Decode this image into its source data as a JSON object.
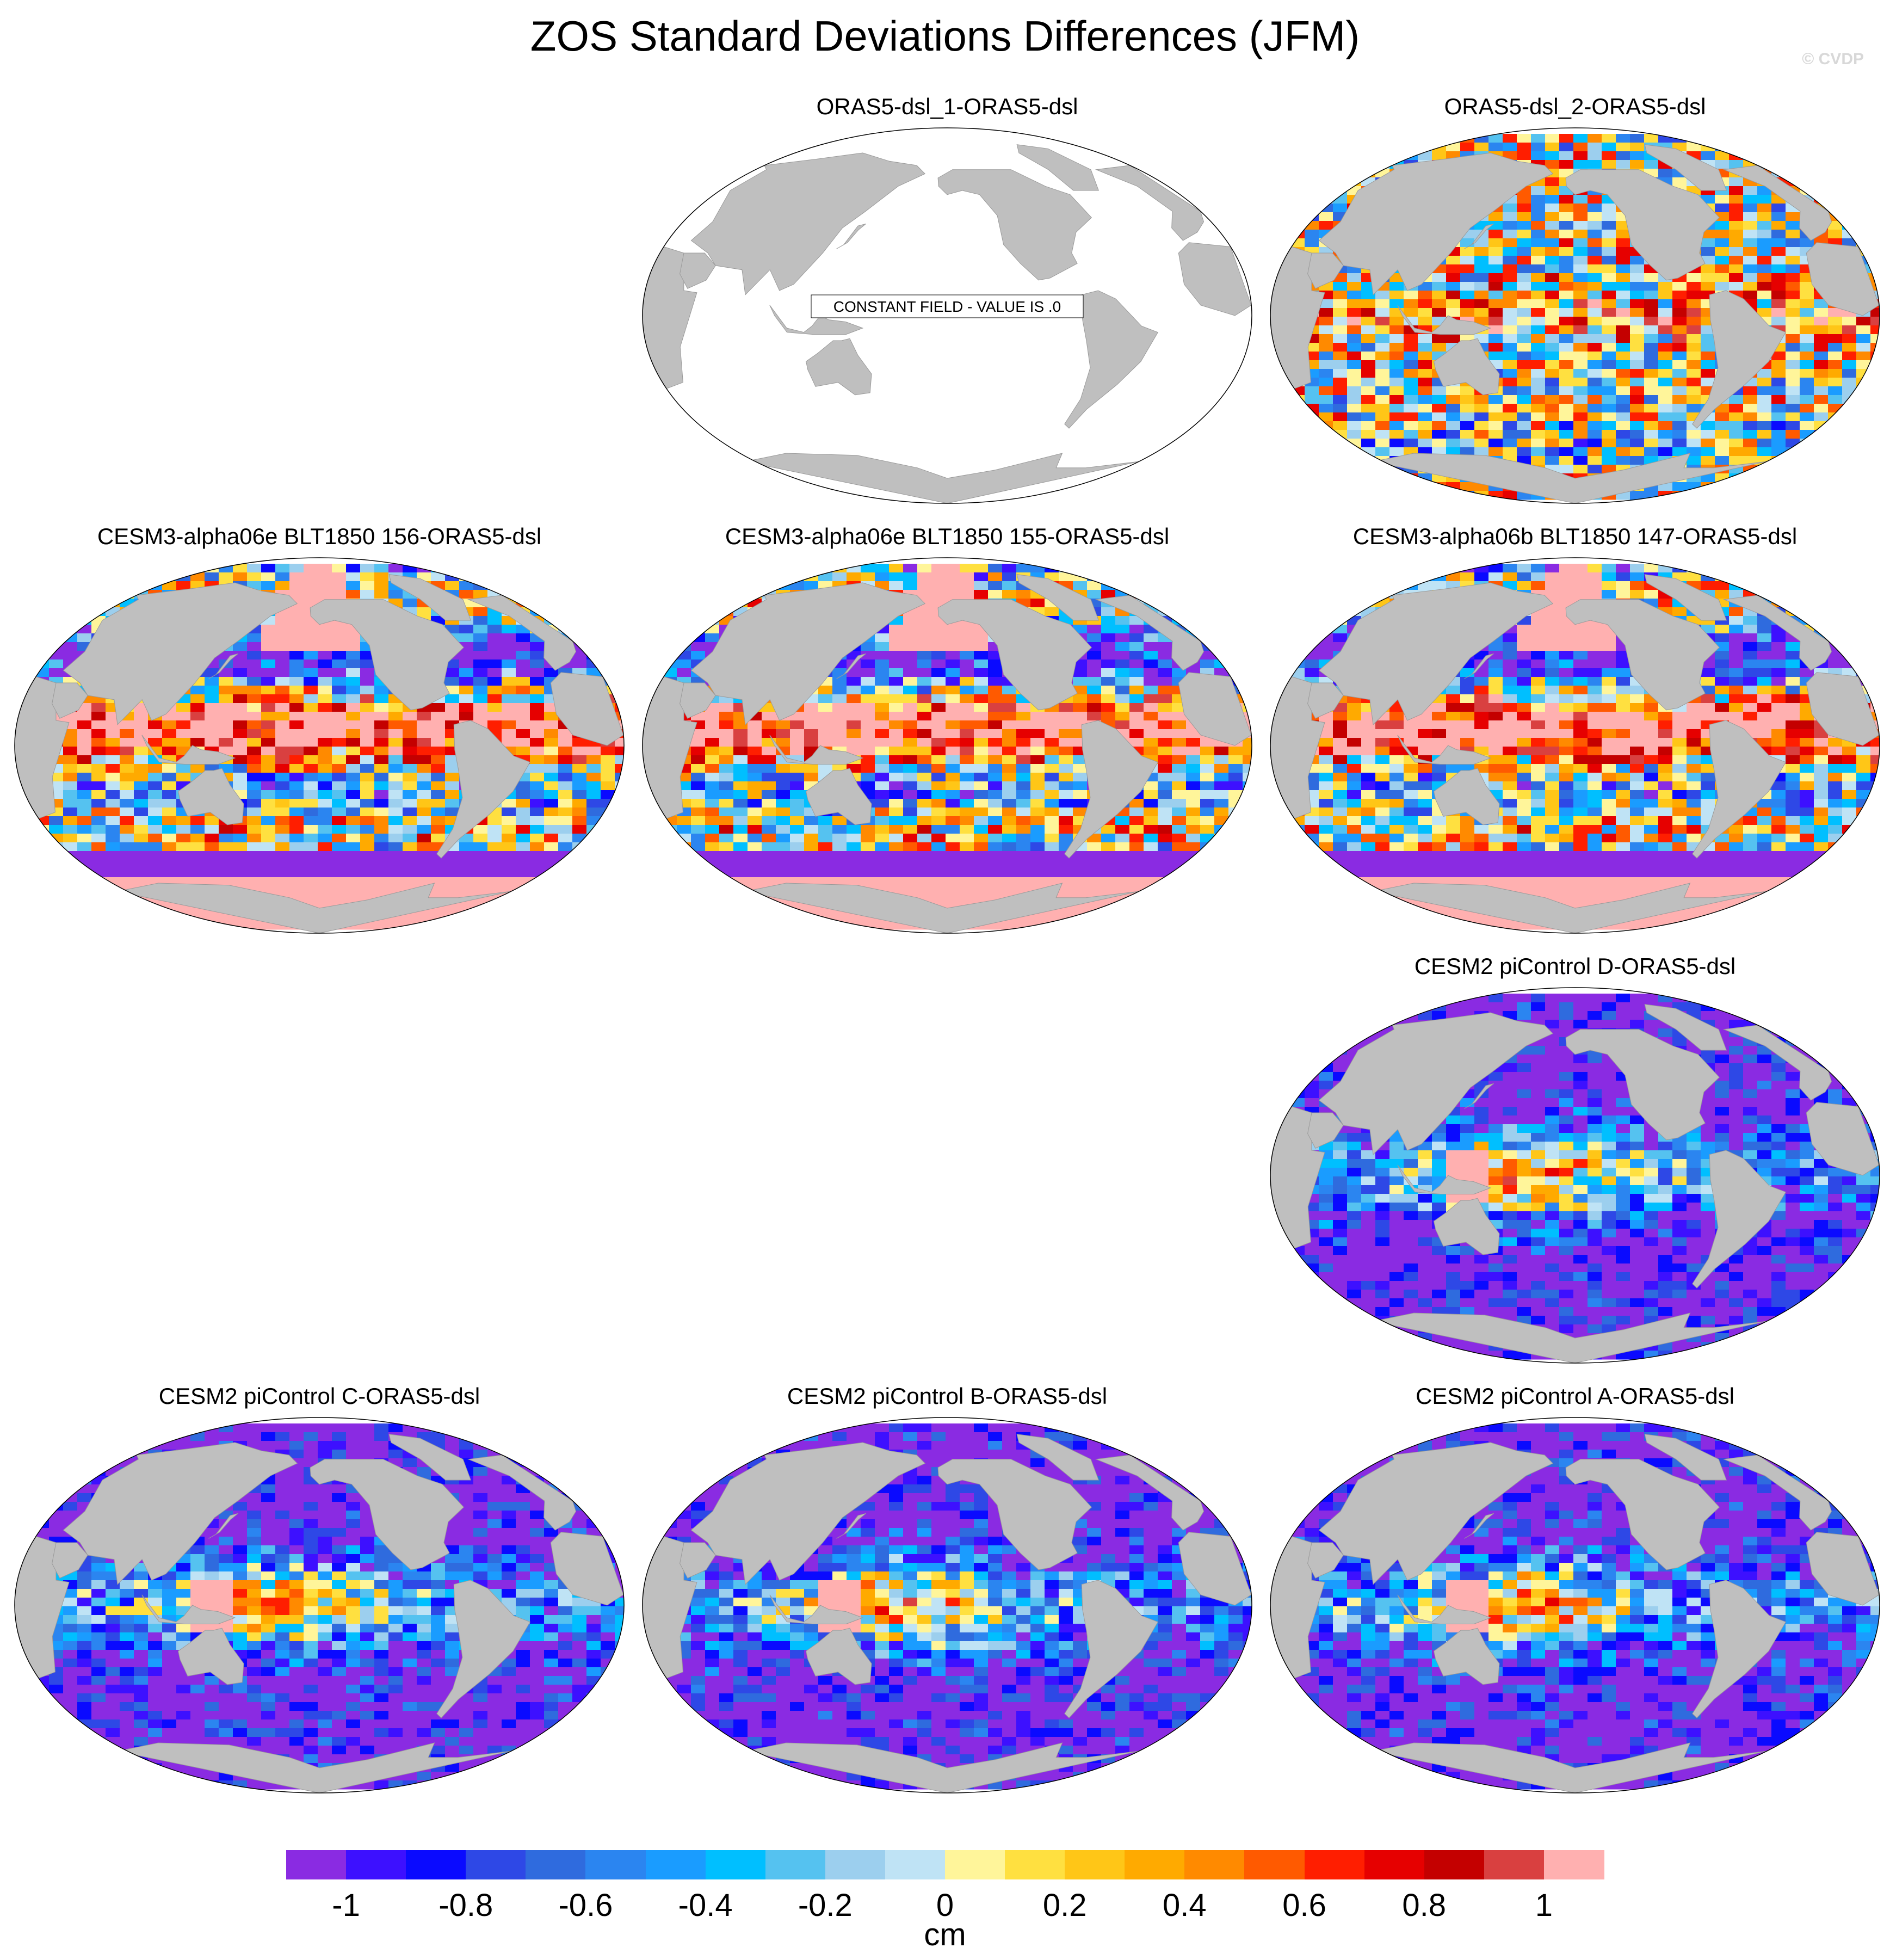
{
  "title": "ZOS Standard Deviations Differences (JFM)",
  "watermark": "© CVDP",
  "panels": [
    {
      "title": "ORAS5-dsl_1-ORAS5-dsl",
      "style": "constant",
      "note": "CONSTANT FIELD - VALUE IS .0"
    },
    {
      "title": "ORAS5-dsl_2-ORAS5-dsl",
      "style": "mixed"
    },
    {
      "title": "CESM3-alpha06e BLT1850 156-ORAS5-dsl",
      "style": "cesm3"
    },
    {
      "title": "CESM3-alpha06e BLT1850 155-ORAS5-dsl",
      "style": "cesm3"
    },
    {
      "title": "CESM3-alpha06b BLT1850 147-ORAS5-dsl",
      "style": "cesm3"
    },
    {
      "title": "CESM2 piControl D-ORAS5-dsl",
      "style": "cesm2"
    },
    {
      "title": "CESM2 piControl C-ORAS5-dsl",
      "style": "cesm2"
    },
    {
      "title": "CESM2 piControl B-ORAS5-dsl",
      "style": "cesm2"
    },
    {
      "title": "CESM2 piControl A-ORAS5-dsl",
      "style": "cesm2"
    }
  ],
  "colorbar": {
    "unit": "cm",
    "tick_labels": [
      "-1",
      "-0.8",
      "-0.6",
      "-0.4",
      "-0.2",
      "0",
      "0.2",
      "0.4",
      "0.6",
      "0.8",
      "1"
    ],
    "colors": [
      "#8a2be2",
      "#3d10ff",
      "#0a0aff",
      "#2e48e6",
      "#2f6bde",
      "#2b85f0",
      "#1a9cff",
      "#00bfff",
      "#55c2f0",
      "#9ccfee",
      "#bfe3f5",
      "#fff59a",
      "#ffe040",
      "#ffc617",
      "#ffaa00",
      "#ff8a00",
      "#ff5a00",
      "#ff1e00",
      "#e60000",
      "#c40000",
      "#d94040",
      "#ffb0b0"
    ]
  },
  "colors": {
    "land": "#bfbfbf",
    "ocean_missing": "#ffffff"
  }
}
